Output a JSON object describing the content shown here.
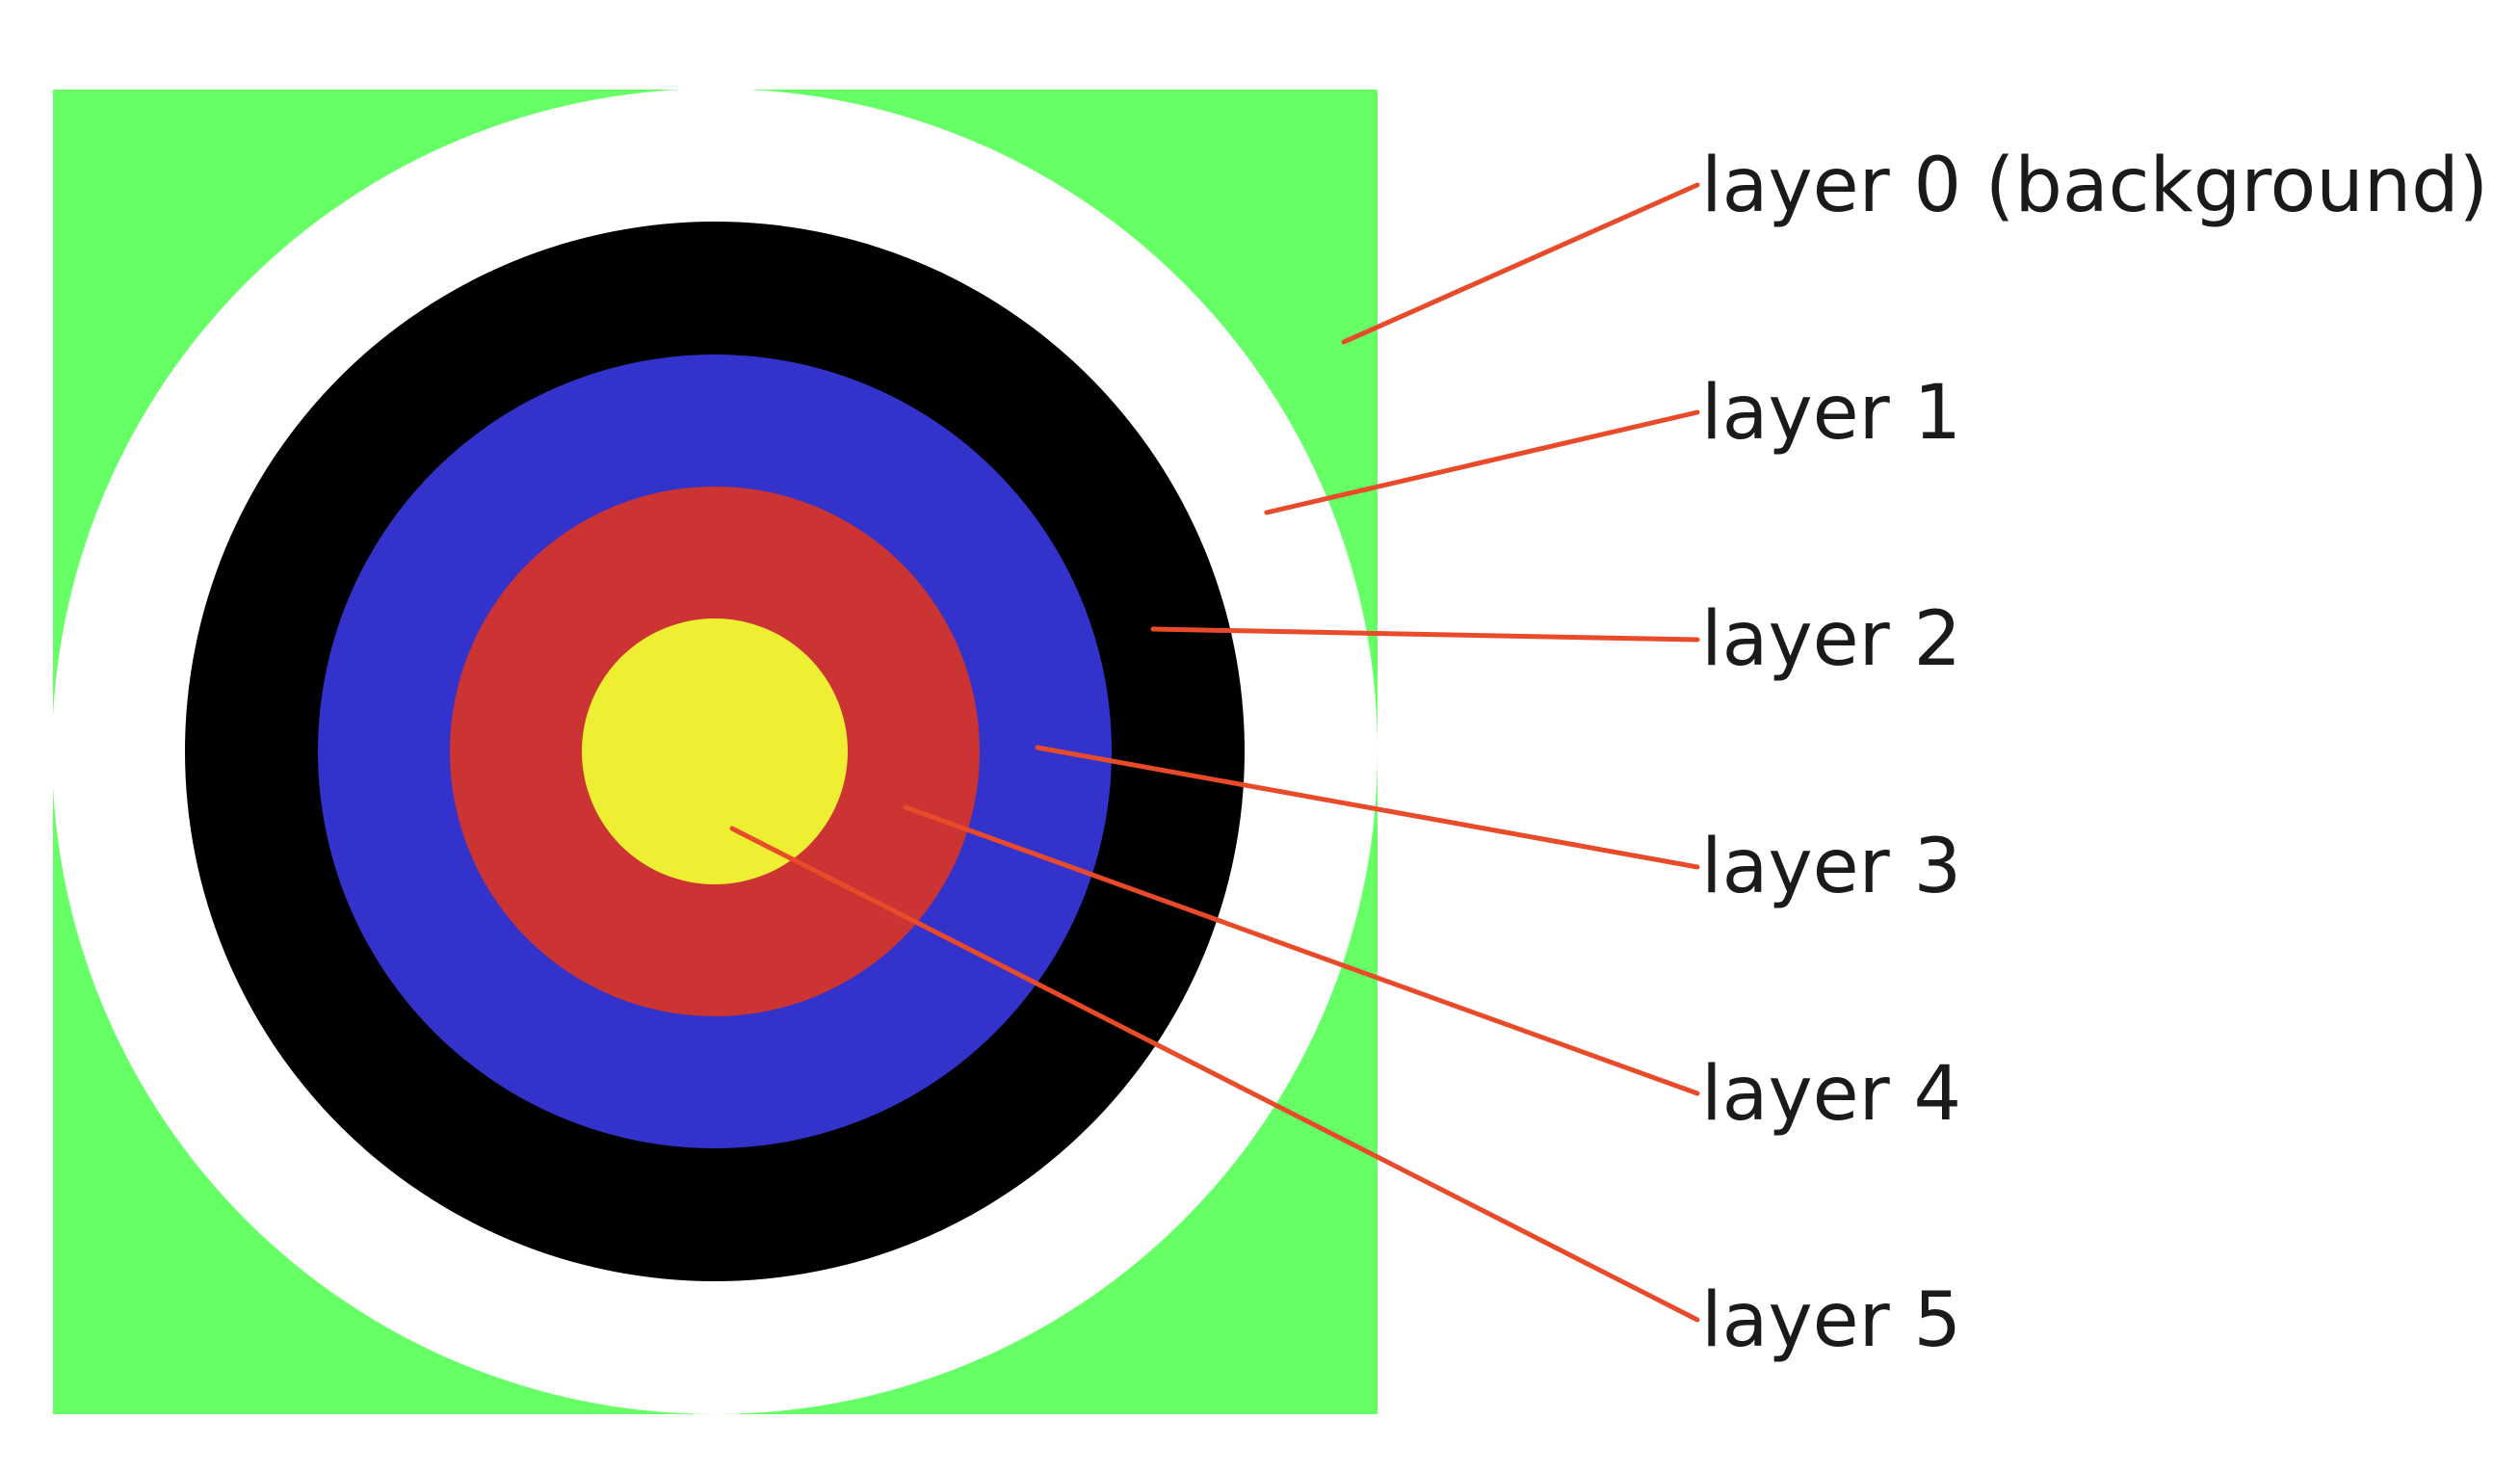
{
  "colors": {
    "layer_0": "#66ff66",
    "layer_1": "#ffffff",
    "layer_2": "#000000",
    "layer_3": "#3333cc",
    "layer_4": "#cc3333",
    "layer_5": "#eeee33",
    "leader_line": "#e84a2a"
  },
  "labels": {
    "layer_0": "layer 0 (background)",
    "layer_1": "layer 1",
    "layer_2": "layer 2",
    "layer_3": "layer 3",
    "layer_4": "layer 4",
    "layer_5": "layer 5"
  }
}
